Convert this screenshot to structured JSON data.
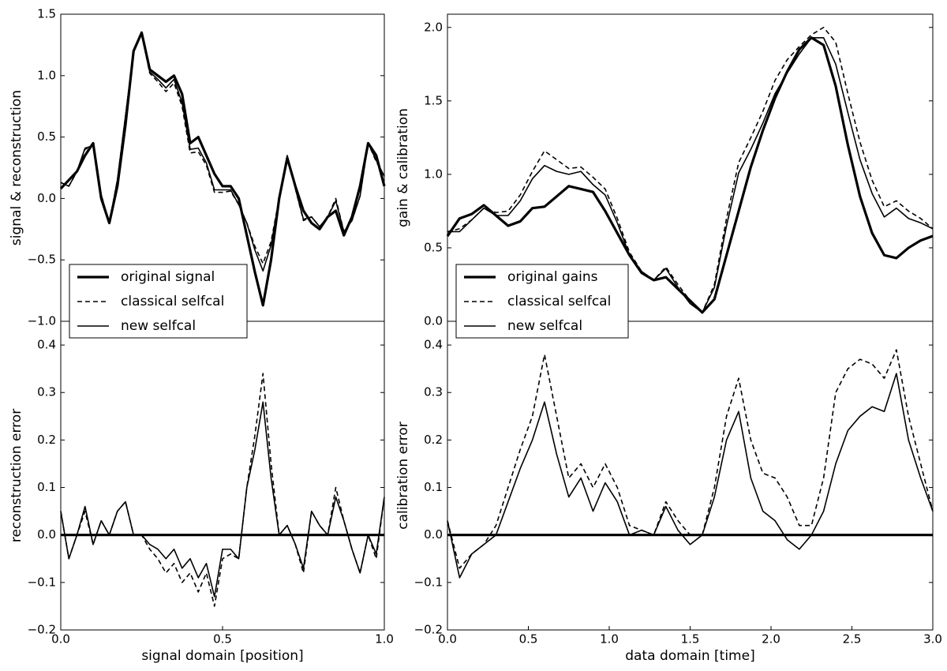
{
  "chart_data": [
    {
      "type": "line",
      "ylabel": "signal & reconstruction",
      "legend": "lower left",
      "x": [
        0,
        0.025,
        0.05,
        0.075,
        0.1,
        0.125,
        0.15,
        0.175,
        0.2,
        0.225,
        0.25,
        0.275,
        0.3,
        0.325,
        0.35,
        0.375,
        0.4,
        0.425,
        0.45,
        0.475,
        0.5,
        0.525,
        0.55,
        0.575,
        0.6,
        0.625,
        0.65,
        0.675,
        0.7,
        0.725,
        0.75,
        0.775,
        0.8,
        0.825,
        0.85,
        0.875,
        0.9,
        0.925,
        0.95,
        0.975,
        1
      ],
      "xlim": [
        0,
        1
      ],
      "ylim": [
        -1,
        1.5
      ],
      "yticks": [
        {
          "value": -1,
          "label": "−1.0"
        },
        {
          "value": -0.5,
          "label": "−0.5"
        },
        {
          "value": 0,
          "label": "0.0"
        },
        {
          "value": 0.5,
          "label": "0.5"
        },
        {
          "value": 1,
          "label": "1.0"
        },
        {
          "value": 1.5,
          "label": "1.5"
        }
      ],
      "series": [
        {
          "name": "original signal",
          "color": "#000000",
          "width": 3.2,
          "dash": "none",
          "values": [
            0.08,
            0.15,
            0.22,
            0.35,
            0.45,
            0.0,
            -0.2,
            0.1,
            0.6,
            1.2,
            1.35,
            1.05,
            1.0,
            0.95,
            1.0,
            0.85,
            0.45,
            0.5,
            0.35,
            0.2,
            0.1,
            0.1,
            0.0,
            -0.3,
            -0.6,
            -0.87,
            -0.5,
            0.0,
            0.33,
            0.1,
            -0.1,
            -0.2,
            -0.25,
            -0.15,
            -0.1,
            -0.3,
            -0.15,
            0.1,
            0.45,
            0.35,
            0.1
          ]
        },
        {
          "name": "classical selfcal",
          "color": "#000000",
          "width": 1.6,
          "dash": "6,4",
          "values": [
            0.13,
            0.1,
            0.22,
            0.4,
            0.43,
            0.03,
            -0.2,
            0.15,
            0.67,
            1.2,
            1.35,
            1.02,
            0.95,
            0.87,
            0.94,
            0.75,
            0.37,
            0.38,
            0.27,
            0.05,
            0.05,
            0.06,
            -0.05,
            -0.2,
            -0.39,
            -0.53,
            -0.35,
            0.0,
            0.35,
            0.08,
            -0.18,
            -0.15,
            -0.23,
            -0.15,
            0.0,
            -0.27,
            -0.18,
            0.02,
            0.45,
            0.3,
            0.18
          ]
        },
        {
          "name": "new selfcal",
          "color": "#000000",
          "width": 1.6,
          "dash": "none",
          "values": [
            0.13,
            0.1,
            0.22,
            0.41,
            0.43,
            0.03,
            -0.2,
            0.15,
            0.67,
            1.2,
            1.35,
            1.03,
            0.97,
            0.9,
            0.97,
            0.78,
            0.4,
            0.41,
            0.29,
            0.07,
            0.07,
            0.07,
            -0.05,
            -0.2,
            -0.42,
            -0.59,
            -0.38,
            0.0,
            0.35,
            0.08,
            -0.17,
            -0.15,
            -0.23,
            -0.15,
            -0.02,
            -0.27,
            -0.18,
            0.02,
            0.45,
            0.31,
            0.18
          ]
        }
      ]
    },
    {
      "type": "line",
      "xlabel": "signal domain [position]",
      "ylabel": "reconstruction error",
      "x": [
        0,
        0.025,
        0.05,
        0.075,
        0.1,
        0.125,
        0.15,
        0.175,
        0.2,
        0.225,
        0.25,
        0.275,
        0.3,
        0.325,
        0.35,
        0.375,
        0.4,
        0.425,
        0.45,
        0.475,
        0.5,
        0.525,
        0.55,
        0.575,
        0.6,
        0.625,
        0.65,
        0.675,
        0.7,
        0.725,
        0.75,
        0.775,
        0.8,
        0.825,
        0.85,
        0.875,
        0.9,
        0.925,
        0.95,
        0.975,
        1
      ],
      "xlim": [
        0,
        1
      ],
      "ylim": [
        -0.2,
        0.45
      ],
      "xticks": [
        {
          "value": 0,
          "label": "0.0"
        },
        {
          "value": 0.5,
          "label": "0.5"
        },
        {
          "value": 1,
          "label": "1.0"
        }
      ],
      "yticks": [
        {
          "value": -0.2,
          "label": "−0.2"
        },
        {
          "value": -0.1,
          "label": "−0.1"
        },
        {
          "value": 0,
          "label": "0.0"
        },
        0.1,
        0.2,
        0.3,
        0.4
      ],
      "series": [
        {
          "color": "#000000",
          "width": 3.2,
          "dash": "none",
          "x": [
            0,
            1
          ],
          "values": [
            0,
            0
          ]
        },
        {
          "color": "#000000",
          "width": 1.6,
          "dash": "6,4",
          "values": [
            0.05,
            -0.05,
            0.0,
            0.05,
            -0.02,
            0.03,
            0.0,
            0.05,
            0.07,
            0.0,
            0.0,
            -0.03,
            -0.05,
            -0.08,
            -0.06,
            -0.1,
            -0.08,
            -0.12,
            -0.08,
            -0.15,
            -0.05,
            -0.04,
            -0.05,
            0.1,
            0.21,
            0.34,
            0.15,
            0.0,
            0.02,
            -0.02,
            -0.08,
            0.05,
            0.02,
            0.0,
            0.1,
            0.03,
            -0.03,
            -0.08,
            0.0,
            -0.05,
            0.08
          ]
        },
        {
          "color": "#000000",
          "width": 1.6,
          "dash": "none",
          "values": [
            0.05,
            -0.05,
            0.0,
            0.06,
            -0.02,
            0.03,
            0.0,
            0.05,
            0.07,
            0.0,
            0.0,
            -0.02,
            -0.03,
            -0.05,
            -0.03,
            -0.07,
            -0.05,
            -0.09,
            -0.06,
            -0.13,
            -0.03,
            -0.03,
            -0.05,
            0.1,
            0.18,
            0.28,
            0.12,
            0.0,
            0.02,
            -0.02,
            -0.07,
            0.05,
            0.02,
            0.0,
            0.08,
            0.03,
            -0.03,
            -0.08,
            0.0,
            -0.04,
            0.08
          ]
        }
      ]
    },
    {
      "type": "line",
      "ylabel": "gain & calibration",
      "legend": "lower left",
      "x": [
        0,
        0.075,
        0.15,
        0.225,
        0.3,
        0.375,
        0.45,
        0.525,
        0.6,
        0.675,
        0.75,
        0.825,
        0.9,
        0.975,
        1.05,
        1.125,
        1.2,
        1.275,
        1.35,
        1.425,
        1.5,
        1.575,
        1.65,
        1.725,
        1.8,
        1.875,
        1.95,
        2.025,
        2.1,
        2.175,
        2.25,
        2.325,
        2.4,
        2.475,
        2.55,
        2.625,
        2.7,
        2.775,
        2.85,
        2.925,
        3
      ],
      "xlim": [
        0,
        3
      ],
      "ylim": [
        0,
        2.09
      ],
      "yticks": [
        {
          "value": 0,
          "label": "0.0"
        },
        0.5,
        {
          "value": 1,
          "label": "1.0"
        },
        1.5,
        {
          "value": 2,
          "label": "2.0"
        }
      ],
      "series": [
        {
          "name": "original gains",
          "color": "#000000",
          "width": 3.2,
          "dash": "none",
          "values": [
            0.58,
            0.7,
            0.73,
            0.79,
            0.72,
            0.65,
            0.68,
            0.77,
            0.78,
            0.85,
            0.92,
            0.9,
            0.88,
            0.75,
            0.6,
            0.45,
            0.33,
            0.28,
            0.3,
            0.22,
            0.14,
            0.06,
            0.15,
            0.45,
            0.75,
            1.05,
            1.3,
            1.52,
            1.7,
            1.85,
            1.93,
            1.88,
            1.6,
            1.2,
            0.85,
            0.6,
            0.45,
            0.43,
            0.5,
            0.55,
            0.58
          ]
        },
        {
          "name": "classical selfcal",
          "color": "#000000",
          "width": 1.6,
          "dash": "6,4",
          "values": [
            0.61,
            0.63,
            0.69,
            0.77,
            0.74,
            0.75,
            0.86,
            1.02,
            1.16,
            1.1,
            1.04,
            1.05,
            0.98,
            0.9,
            0.7,
            0.47,
            0.34,
            0.28,
            0.37,
            0.25,
            0.14,
            0.06,
            0.25,
            0.7,
            1.08,
            1.25,
            1.43,
            1.64,
            1.78,
            1.87,
            1.95,
            2.0,
            1.9,
            1.55,
            1.22,
            0.96,
            0.78,
            0.82,
            0.75,
            0.7,
            0.63
          ]
        },
        {
          "name": "new selfcal",
          "color": "#000000",
          "width": 1.6,
          "dash": "none",
          "values": [
            0.61,
            0.61,
            0.69,
            0.77,
            0.72,
            0.72,
            0.82,
            0.97,
            1.06,
            1.02,
            1.0,
            1.02,
            0.93,
            0.86,
            0.67,
            0.45,
            0.34,
            0.28,
            0.36,
            0.23,
            0.12,
            0.06,
            0.23,
            0.65,
            1.01,
            1.17,
            1.35,
            1.55,
            1.69,
            1.82,
            1.93,
            1.93,
            1.75,
            1.42,
            1.1,
            0.87,
            0.71,
            0.77,
            0.7,
            0.67,
            0.63
          ]
        }
      ]
    },
    {
      "type": "line",
      "xlabel": "data domain [time]",
      "ylabel": "calibration error",
      "x": [
        0,
        0.075,
        0.15,
        0.225,
        0.3,
        0.375,
        0.45,
        0.525,
        0.6,
        0.675,
        0.75,
        0.825,
        0.9,
        0.975,
        1.05,
        1.125,
        1.2,
        1.275,
        1.35,
        1.425,
        1.5,
        1.575,
        1.65,
        1.725,
        1.8,
        1.875,
        1.95,
        2.025,
        2.1,
        2.175,
        2.25,
        2.325,
        2.4,
        2.475,
        2.55,
        2.625,
        2.7,
        2.775,
        2.85,
        2.925,
        3
      ],
      "xlim": [
        0,
        3
      ],
      "ylim": [
        -0.2,
        0.45
      ],
      "xticks": [
        {
          "value": 0,
          "label": "0.0"
        },
        0.5,
        {
          "value": 1,
          "label": "1.0"
        },
        1.5,
        {
          "value": 2,
          "label": "2.0"
        },
        2.5,
        {
          "value": 3,
          "label": "3.0"
        }
      ],
      "yticks": [
        {
          "value": -0.2,
          "label": "−0.2"
        },
        {
          "value": -0.1,
          "label": "−0.1"
        },
        {
          "value": 0,
          "label": "0.0"
        },
        0.1,
        0.2,
        0.3,
        0.4
      ],
      "series": [
        {
          "color": "#000000",
          "width": 3.2,
          "dash": "none",
          "x": [
            0,
            3
          ],
          "values": [
            0,
            0
          ]
        },
        {
          "color": "#000000",
          "width": 1.6,
          "dash": "6,4",
          "values": [
            0.03,
            -0.07,
            -0.04,
            -0.02,
            0.02,
            0.1,
            0.18,
            0.25,
            0.38,
            0.25,
            0.12,
            0.15,
            0.1,
            0.15,
            0.1,
            0.02,
            0.01,
            0.0,
            0.07,
            0.03,
            0.0,
            0.0,
            0.1,
            0.25,
            0.33,
            0.2,
            0.13,
            0.12,
            0.08,
            0.02,
            0.02,
            0.12,
            0.3,
            0.35,
            0.37,
            0.36,
            0.33,
            0.39,
            0.25,
            0.15,
            0.05
          ]
        },
        {
          "color": "#000000",
          "width": 1.6,
          "dash": "none",
          "values": [
            0.03,
            -0.09,
            -0.04,
            -0.02,
            0.0,
            0.07,
            0.14,
            0.2,
            0.28,
            0.17,
            0.08,
            0.12,
            0.05,
            0.11,
            0.07,
            0.0,
            0.01,
            0.0,
            0.06,
            0.01,
            -0.02,
            0.0,
            0.08,
            0.2,
            0.26,
            0.12,
            0.05,
            0.03,
            -0.01,
            -0.03,
            0.0,
            0.05,
            0.15,
            0.22,
            0.25,
            0.27,
            0.26,
            0.34,
            0.2,
            0.12,
            0.05
          ]
        }
      ]
    }
  ]
}
